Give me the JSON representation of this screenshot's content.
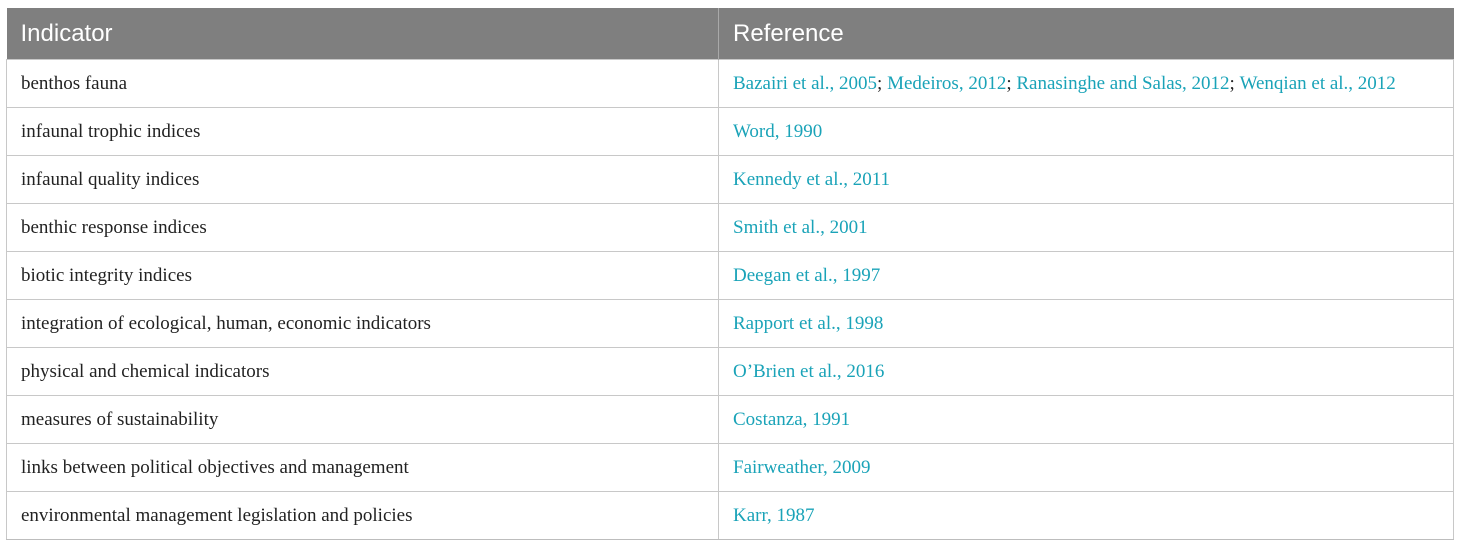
{
  "table": {
    "headers": [
      "Indicator",
      "Reference"
    ],
    "rows": [
      {
        "indicator": "benthos fauna",
        "references": [
          "Bazairi et al., 2005",
          "Medeiros, 2012",
          "Ranasinghe and Salas, 2012",
          "Wenqian et al., 2012"
        ]
      },
      {
        "indicator": "infaunal trophic indices",
        "references": [
          "Word, 1990"
        ]
      },
      {
        "indicator": "infaunal quality indices",
        "references": [
          "Kennedy et al., 2011"
        ]
      },
      {
        "indicator": "benthic response indices",
        "references": [
          "Smith et al., 2001"
        ]
      },
      {
        "indicator": "biotic integrity indices",
        "references": [
          "Deegan et al., 1997"
        ]
      },
      {
        "indicator": "integration of ecological, human, economic indicators",
        "references": [
          "Rapport et al., 1998"
        ]
      },
      {
        "indicator": "physical and chemical indicators",
        "references": [
          "O’Brien et al., 2016"
        ]
      },
      {
        "indicator": "measures of sustainability",
        "references": [
          "Costanza, 1991"
        ]
      },
      {
        "indicator": "links between political objectives and management",
        "references": [
          "Fairweather, 2009"
        ]
      },
      {
        "indicator": "environmental management legislation and policies",
        "references": [
          "Karr, 1987"
        ]
      }
    ],
    "separator": "; "
  },
  "colors": {
    "header_bg": "#7f7f7f",
    "header_text": "#ffffff",
    "link": "#1aa3b8",
    "body_text": "#222222",
    "border": "#c8c8c8"
  }
}
